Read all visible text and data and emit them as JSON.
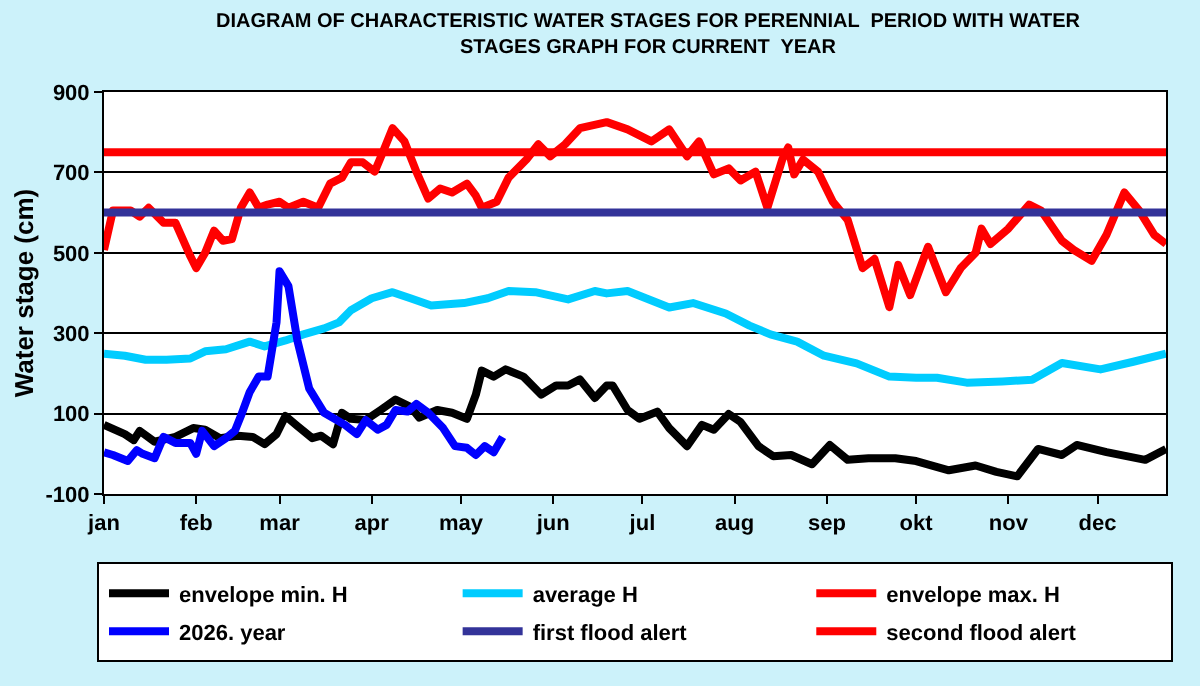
{
  "chart_data": {
    "type": "line",
    "title": "DIAGRAM OF CHARACTERISTIC WATER STAGES FOR PERENNIAL  PERIOD WITH WATER\nSTAGES GRAPH FOR CURRENT  YEAR",
    "ylabel": "Water stage (cm)",
    "xlim": [
      "--01-01",
      "--12-24"
    ],
    "ylim": [
      -100,
      900
    ],
    "yticks": [
      -100,
      100,
      300,
      500,
      700,
      900
    ],
    "xticks": [
      {
        "value": "--01-01",
        "label": "jan"
      },
      {
        "value": "--02-01",
        "label": "feb"
      },
      {
        "value": "--03-01",
        "label": "mar"
      },
      {
        "value": "--04-01",
        "label": "apr"
      },
      {
        "value": "--05-01",
        "label": "may"
      },
      {
        "value": "--06-01",
        "label": "jun"
      },
      {
        "value": "--07-01",
        "label": "jul"
      },
      {
        "value": "--08-01",
        "label": "aug"
      },
      {
        "value": "--09-01",
        "label": "sep"
      },
      {
        "value": "--10-01",
        "label": "okt"
      },
      {
        "value": "--11-01",
        "label": "nov"
      },
      {
        "value": "--12-01",
        "label": "dec"
      }
    ],
    "grid": "y",
    "legend": "bottom",
    "marker": "none",
    "line_style": "solid",
    "series": [
      {
        "name": "envelope min. H",
        "color": "#000000",
        "x": [
          "--01-01",
          "--01-08",
          "--01-11",
          "--01-13",
          "--01-18",
          "--01-25",
          "--01-31",
          "--02-04",
          "--02-09",
          "--02-15",
          "--02-20",
          "--02-24",
          "--02-28",
          "--03-03",
          "--03-07",
          "--03-12",
          "--03-15",
          "--03-19",
          "--03-22",
          "--03-25",
          "--03-30",
          "--04-04",
          "--04-09",
          "--04-14",
          "--04-17",
          "--04-23",
          "--04-28",
          "--05-03",
          "--05-06",
          "--05-08",
          "--05-12",
          "--05-16",
          "--05-22",
          "--05-28",
          "--06-02",
          "--06-06",
          "--06-10",
          "--06-15",
          "--06-19",
          "--06-21",
          "--06-26",
          "--06-30",
          "--07-06",
          "--07-10",
          "--07-16",
          "--07-21",
          "--07-25",
          "--07-30",
          "--08-03",
          "--08-09",
          "--08-14",
          "--08-20",
          "--08-27",
          "--09-02",
          "--09-08",
          "--09-15",
          "--09-24",
          "--10-01",
          "--10-12",
          "--10-21",
          "--10-28",
          "--11-04",
          "--11-11",
          "--11-19",
          "--11-24",
          "--12-04",
          "--12-17",
          "--12-24"
        ],
        "values": [
          72,
          49,
          34,
          57,
          30,
          42,
          64,
          60,
          39,
          45,
          42,
          24,
          49,
          94,
          69,
          39,
          45,
          24,
          102,
          87,
          84,
          109,
          135,
          117,
          90,
          109,
          102,
          87,
          147,
          207,
          192,
          210,
          192,
          147,
          170,
          170,
          185,
          139,
          170,
          170,
          109,
          87,
          105,
          64,
          19,
          72,
          60,
          99,
          79,
          19,
          -6,
          -3,
          -26,
          22,
          -15,
          -11,
          -11,
          -18,
          -41,
          -29,
          -45,
          -56,
          12,
          -3,
          22,
          4,
          -15,
          12
        ]
      },
      {
        "name": "average H",
        "color": "#00ccff",
        "x": [
          "--01-01",
          "--01-08",
          "--01-15",
          "--01-22",
          "--01-30",
          "--02-04",
          "--02-11",
          "--02-19",
          "--02-24",
          "--03-03",
          "--03-09",
          "--03-16",
          "--03-21",
          "--03-25",
          "--04-01",
          "--04-08",
          "--04-14",
          "--04-21",
          "--05-02",
          "--05-10",
          "--05-17",
          "--05-26",
          "--06-06",
          "--06-15",
          "--06-19",
          "--06-26",
          "--07-10",
          "--07-18",
          "--07-29",
          "--08-06",
          "--08-13",
          "--08-22",
          "--08-31",
          "--09-11",
          "--09-22",
          "--10-01",
          "--10-08",
          "--10-18",
          "--10-30",
          "--11-09",
          "--11-19",
          "--12-02",
          "--12-13",
          "--12-24"
        ],
        "values": [
          249,
          244,
          234,
          234,
          237,
          255,
          260,
          279,
          267,
          282,
          297,
          312,
          327,
          357,
          387,
          402,
          387,
          369,
          375,
          387,
          405,
          402,
          384,
          405,
          399,
          405,
          364,
          375,
          349,
          319,
          297,
          279,
          244,
          225,
          192,
          189,
          189,
          177,
          180,
          184,
          226,
          210,
          229,
          249
        ]
      },
      {
        "name": "envelope max. H",
        "color": "#ff0000",
        "x": [
          "--01-01",
          "--01-04",
          "--01-10",
          "--01-13",
          "--01-16",
          "--01-21",
          "--01-25",
          "--01-30",
          "--02-01",
          "--02-04",
          "--02-07",
          "--02-10",
          "--02-13",
          "--02-16",
          "--02-19",
          "--02-22",
          "--02-25",
          "--03-01",
          "--03-04",
          "--03-09",
          "--03-14",
          "--03-18",
          "--03-22",
          "--03-25",
          "--03-29",
          "--04-02",
          "--04-05",
          "--04-08",
          "--04-12",
          "--04-16",
          "--04-20",
          "--04-24",
          "--04-28",
          "--05-03",
          "--05-06",
          "--05-08",
          "--05-13",
          "--05-17",
          "--05-23",
          "--05-27",
          "--05-31",
          "--06-05",
          "--06-10",
          "--06-19",
          "--06-26",
          "--07-04",
          "--07-10",
          "--07-16",
          "--07-20",
          "--07-25",
          "--07-30",
          "--08-03",
          "--08-08",
          "--08-12",
          "--08-17",
          "--08-19",
          "--08-21",
          "--08-24",
          "--08-29",
          "--09-03",
          "--09-08",
          "--09-13",
          "--09-17",
          "--09-22",
          "--09-25",
          "--09-29",
          "--10-05",
          "--10-11",
          "--10-16",
          "--10-21",
          "--10-23",
          "--10-26",
          "--11-01",
          "--11-08",
          "--11-12",
          "--11-19",
          "--11-23",
          "--11-29",
          "--12-04",
          "--12-10",
          "--12-15",
          "--12-20",
          "--12-24"
        ],
        "values": [
          507,
          605,
          605,
          590,
          612,
          575,
          575,
          492,
          462,
          500,
          555,
          530,
          534,
          612,
          650,
          612,
          620,
          627,
          612,
          627,
          612,
          672,
          687,
          725,
          725,
          702,
          755,
          810,
          777,
          702,
          635,
          660,
          650,
          672,
          642,
          612,
          627,
          687,
          732,
          770,
          740,
          770,
          810,
          825,
          807,
          777,
          807,
          740,
          777,
          695,
          710,
          680,
          702,
          612,
          732,
          762,
          695,
          732,
          702,
          627,
          582,
          462,
          485,
          365,
          470,
          395,
          515,
          402,
          462,
          500,
          560,
          522,
          560,
          620,
          605,
          530,
          507,
          480,
          545,
          650,
          605,
          545,
          522
        ]
      },
      {
        "name": "2026. year",
        "color": "#0000ff",
        "x": [
          "--01-01",
          "--01-04",
          "--01-09",
          "--01-12",
          "--01-14",
          "--01-18",
          "--01-21",
          "--01-25",
          "--01-30",
          "--02-01",
          "--02-03",
          "--02-07",
          "--02-11",
          "--02-14",
          "--02-16",
          "--02-19",
          "--02-22",
          "--02-25",
          "--02-28",
          "--03-01",
          "--03-04",
          "--03-07",
          "--03-11",
          "--03-16",
          "--03-23",
          "--03-27",
          "--03-30",
          "--04-03",
          "--04-06",
          "--04-09",
          "--04-13",
          "--04-16",
          "--04-20",
          "--04-25",
          "--04-29",
          "--05-03",
          "--05-06",
          "--05-09",
          "--05-12",
          "--05-15"
        ],
        "values": [
          4,
          -3,
          -18,
          9,
          0,
          -11,
          42,
          27,
          27,
          0,
          57,
          19,
          39,
          57,
          94,
          154,
          192,
          192,
          327,
          454,
          417,
          282,
          162,
          102,
          72,
          49,
          84,
          60,
          72,
          109,
          105,
          124,
          102,
          64,
          19,
          15,
          -3,
          19,
          4,
          42
        ]
      }
    ],
    "ref_lines": [
      {
        "axis": "y",
        "value": 600,
        "label": "first flood alert",
        "color": "#333399"
      },
      {
        "axis": "y",
        "value": 750,
        "label": "second flood alert",
        "color": "#ff0000"
      }
    ]
  }
}
